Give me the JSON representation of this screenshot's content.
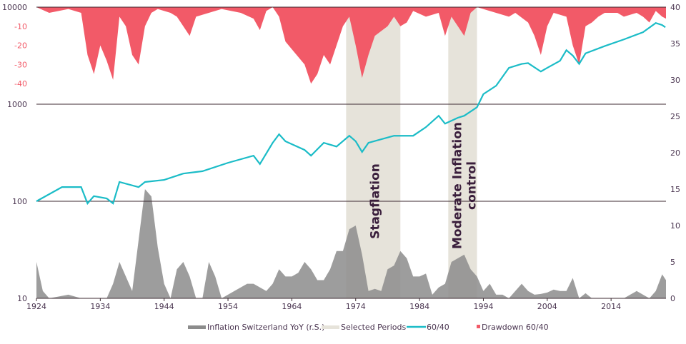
{
  "chart_data": {
    "type": "line",
    "colors": {
      "line": "#1bbcc7",
      "drawdown": "#f25a68",
      "inflation": "#8c8c8c",
      "period": "#e6e3da",
      "text": "#4a3550",
      "grid": "#3c2a32"
    },
    "xlim": [
      1924,
      2022.6
    ],
    "x_ticks": [
      "1924",
      "1934",
      "1944",
      "1954",
      "1964",
      "1974",
      "1984",
      "1994",
      "2004",
      "2014"
    ],
    "left_axis": {
      "scale": "log",
      "ylim": [
        10,
        10000
      ],
      "ticks": [
        "10",
        "100",
        "1000",
        "10000"
      ]
    },
    "drawdown_axis": {
      "ylim": [
        -50,
        0
      ],
      "ticks": [
        "-10",
        "-20",
        "-30",
        "-40"
      ]
    },
    "right_axis": {
      "ylim": [
        0,
        40
      ],
      "ticks": [
        "0",
        "5",
        "10",
        "15",
        "20",
        "25",
        "30",
        "35",
        "40"
      ]
    },
    "periods": [
      {
        "label": "Stagflation",
        "start": 1972.5,
        "end": 1981
      },
      {
        "label": "Moderate Inflation control",
        "start": 1988.5,
        "end": 1993
      }
    ],
    "legend": [
      "Inflation Switzerland YoY (r.S.)",
      "Selected Periods",
      "60/40",
      "Drawdown 60/40"
    ],
    "series": [
      {
        "name": "60/40",
        "x": [
          1924,
          1928,
          1931,
          1932,
          1933,
          1935,
          1936,
          1937,
          1940,
          1941,
          1944,
          1947,
          1950,
          1954,
          1958,
          1959,
          1961,
          1962,
          1963,
          1966,
          1967,
          1969,
          1971,
          1973,
          1974,
          1975,
          1976,
          1980,
          1983,
          1985,
          1987,
          1988,
          1990,
          1991,
          1993,
          1994,
          1996,
          1998,
          2000,
          2001,
          2003,
          2004,
          2006,
          2007,
          2008,
          2009,
          2010,
          2013,
          2016,
          2019,
          2021,
          2022,
          2022.5
        ],
        "values": [
          100,
          140,
          140,
          95,
          113,
          107,
          95,
          158,
          140,
          158,
          166,
          193,
          204,
          249,
          295,
          242,
          400,
          490,
          415,
          338,
          295,
          400,
          366,
          473,
          415,
          322,
          400,
          473,
          473,
          580,
          760,
          630,
          725,
          760,
          930,
          1270,
          1550,
          2370,
          2600,
          2650,
          2170,
          2370,
          2800,
          3600,
          3170,
          2600,
          3340,
          3970,
          4650,
          5520,
          6860,
          6540,
          6200
        ]
      },
      {
        "name": "Drawdown 60/40",
        "x": [
          1924,
          1926,
          1929,
          1931,
          1932,
          1933,
          1934,
          1935,
          1936,
          1937,
          1938,
          1939,
          1940,
          1941,
          1942,
          1943,
          1945,
          1946,
          1948,
          1949,
          1951,
          1953,
          1956,
          1958,
          1959,
          1960,
          1961,
          1962,
          1963,
          1964,
          1966,
          1967,
          1968,
          1969,
          1970,
          1971,
          1972,
          1973,
          1974,
          1975,
          1976,
          1977,
          1979,
          1980,
          1981,
          1982,
          1983,
          1985,
          1987,
          1988,
          1989,
          1990,
          1991,
          1992,
          1993,
          1995,
          1998,
          1999,
          2001,
          2002,
          2003,
          2004,
          2005,
          2007,
          2008,
          2009,
          2010,
          2011,
          2012,
          2013,
          2015,
          2016,
          2018,
          2019,
          2020,
          2021,
          2022,
          2022.6
        ],
        "values": [
          0,
          -3,
          -1,
          -3,
          -25,
          -35,
          -20,
          -28,
          -38,
          -5,
          -10,
          -25,
          -30,
          -10,
          -3,
          -1,
          -3,
          -5,
          -15,
          -5,
          -3,
          -1,
          -3,
          -6,
          -12,
          -2,
          0,
          -5,
          -18,
          -22,
          -30,
          -40,
          -35,
          -25,
          -30,
          -20,
          -10,
          -5,
          -20,
          -37,
          -25,
          -15,
          -10,
          -5,
          -10,
          -8,
          -2,
          -5,
          -3,
          -15,
          -5,
          -10,
          -15,
          -3,
          0,
          -2,
          -5,
          -3,
          -8,
          -15,
          -25,
          -10,
          -3,
          -5,
          -20,
          -30,
          -10,
          -8,
          -5,
          -3,
          -3,
          -5,
          -3,
          -5,
          -8,
          -2,
          -5,
          -6
        ]
      },
      {
        "name": "Inflation Switzerland YoY (r.S.)",
        "x": [
          1924,
          1925,
          1926,
          1929,
          1931,
          1935,
          1936,
          1937,
          1938,
          1939,
          1940,
          1941,
          1942,
          1943,
          1944,
          1945,
          1946,
          1947,
          1948,
          1949,
          1950,
          1951,
          1952,
          1953,
          1955,
          1957,
          1958,
          1960,
          1961,
          1962,
          1963,
          1964,
          1965,
          1966,
          1967,
          1968,
          1969,
          1970,
          1971,
          1972,
          1973,
          1974,
          1975,
          1976,
          1977,
          1978,
          1979,
          1980,
          1981,
          1982,
          1983,
          1984,
          1985,
          1986,
          1987,
          1988,
          1989,
          1990,
          1991,
          1992,
          1993,
          1994,
          1995,
          1996,
          1997,
          1998,
          1999,
          2000,
          2001,
          2002,
          2003,
          2004,
          2005,
          2006,
          2007,
          2008,
          2009,
          2010,
          2011,
          2012,
          2013,
          2015,
          2016,
          2017,
          2018,
          2019,
          2020,
          2021,
          2022,
          2022.6
        ],
        "values": [
          5,
          1,
          0,
          0.5,
          0,
          0,
          2,
          5,
          3,
          1,
          8,
          15,
          14,
          7,
          2,
          0,
          4,
          5,
          3,
          0,
          0,
          5,
          3,
          0,
          1,
          2,
          2,
          1,
          2,
          4,
          3,
          3,
          3.5,
          5,
          4,
          2.5,
          2.5,
          4,
          6.5,
          6.5,
          9.5,
          10,
          6,
          1,
          1.3,
          1,
          4,
          4.5,
          6.5,
          5.5,
          3,
          3,
          3.4,
          0.5,
          1.5,
          2,
          5,
          5.5,
          6,
          4,
          3,
          1,
          2,
          0.5,
          0.5,
          0,
          1,
          2,
          1,
          0.5,
          0.6,
          0.8,
          1.2,
          1,
          1,
          2.8,
          0,
          0.7,
          0,
          0,
          0,
          0,
          0,
          0.5,
          1,
          0.5,
          0,
          1,
          3.3,
          2.5
        ]
      }
    ]
  }
}
